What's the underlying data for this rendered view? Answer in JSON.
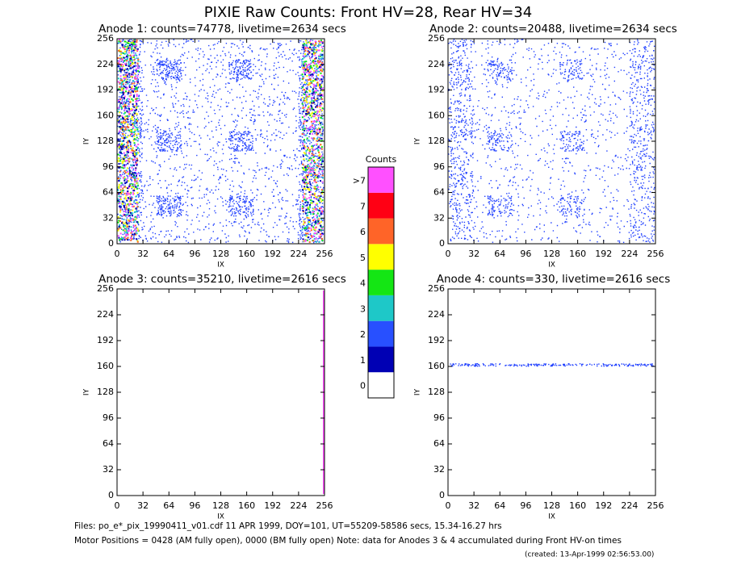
{
  "title": "PIXIE Raw Counts:  Front HV=28, Rear HV=34",
  "panels": [
    {
      "title": "Anode 1: counts=74778, livetime=2634 secs",
      "xlabel": "IX",
      "ylabel": "IY",
      "xlim": [
        0,
        256
      ],
      "ylim": [
        0,
        256
      ],
      "xticks": [
        0,
        32,
        64,
        96,
        128,
        160,
        192,
        224,
        256
      ],
      "yticks": [
        0,
        32,
        64,
        96,
        128,
        160,
        192,
        224,
        256
      ]
    },
    {
      "title": "Anode 2: counts=20488, livetime=2634 secs",
      "xlabel": "IX",
      "ylabel": "IY",
      "xlim": [
        0,
        256
      ],
      "ylim": [
        0,
        256
      ],
      "xticks": [
        0,
        32,
        64,
        96,
        128,
        160,
        192,
        224,
        256
      ],
      "yticks": [
        0,
        32,
        64,
        96,
        128,
        160,
        192,
        224,
        256
      ]
    },
    {
      "title": "Anode 3: counts=35210, livetime=2616 secs",
      "xlabel": "IX",
      "ylabel": "IY",
      "xlim": [
        0,
        256
      ],
      "ylim": [
        0,
        256
      ],
      "xticks": [
        0,
        32,
        64,
        96,
        128,
        160,
        192,
        224,
        256
      ],
      "yticks": [
        0,
        32,
        64,
        96,
        128,
        160,
        192,
        224,
        256
      ]
    },
    {
      "title": "Anode 4: counts=330, livetime=2616 secs",
      "xlabel": "IX",
      "ylabel": "IY",
      "xlim": [
        0,
        256
      ],
      "ylim": [
        0,
        256
      ],
      "xticks": [
        0,
        32,
        64,
        96,
        128,
        160,
        192,
        224,
        256
      ],
      "yticks": [
        0,
        32,
        64,
        96,
        128,
        160,
        192,
        224,
        256
      ]
    }
  ],
  "colorbar": {
    "title": "Counts",
    "levels": [
      {
        "label": "0",
        "color": "#ffffff"
      },
      {
        "label": "1",
        "color": "#0000b4"
      },
      {
        "label": "2",
        "color": "#2850ff"
      },
      {
        "label": "3",
        "color": "#1ec8c8"
      },
      {
        "label": "4",
        "color": "#14e614"
      },
      {
        "label": "5",
        "color": "#ffff00"
      },
      {
        "label": "6",
        "color": "#ff6428"
      },
      {
        "label": "7",
        "color": "#ff0014"
      },
      {
        "label": ">7",
        "color": "#ff50ff"
      }
    ]
  },
  "footer": {
    "files": "Files: po_e*_pix_19990411_v01.cdf    11 APR 1999, DOY=101, UT=55209-58586 secs, 15.34-16.27 hrs",
    "motor": "Motor Positions = 0428 (AM fully open), 0000 (BM fully open)    Note: data for Anodes 3 & 4 accumulated during Front HV-on times",
    "created": "(created: 13-Apr-1999 02:56:53.00)"
  }
}
